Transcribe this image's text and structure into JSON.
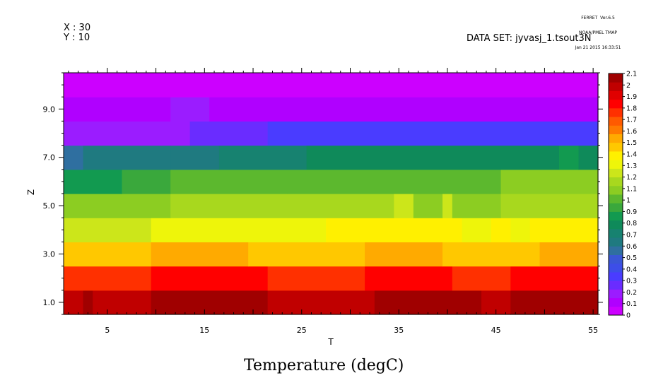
{
  "header": {
    "ferret_line1": "FERRET  Ver.6.5",
    "ferret_line2": "NOAA/PMEL TMAP",
    "ferret_line3": "Jan 21 2015 16:33:51",
    "x_label": "X : 30",
    "y_label": "Y : 10",
    "dataset": "DATA SET: jyvasj_1.tsout3N"
  },
  "chart_data": {
    "type": "heatmap",
    "title": "Temperature (degC)",
    "xlabel": "T",
    "ylabel": "Z",
    "xlim": [
      0.5,
      55.5
    ],
    "ylim": [
      0.5,
      10.5
    ],
    "x_ticks": [
      5,
      15,
      25,
      35,
      45,
      55
    ],
    "x_tick_labels": [
      "5",
      "15",
      "25",
      "35",
      "45",
      "55"
    ],
    "y_ticks": [
      1,
      3,
      5,
      7,
      9
    ],
    "y_tick_labels": [
      "1.0",
      "3.0",
      "5.0",
      "7.0",
      "9.0"
    ],
    "colorbar": {
      "levels": [
        0,
        0.1,
        0.2,
        0.3,
        0.4,
        0.5,
        0.6,
        0.7,
        0.8,
        0.9,
        1,
        1.1,
        1.2,
        1.3,
        1.4,
        1.5,
        1.6,
        1.7,
        1.8,
        1.9,
        2,
        2.1
      ],
      "labels": [
        "0",
        "0.1",
        "0.2",
        "0.3",
        "0.4",
        "0.5",
        "0.6",
        "0.7",
        "0.8",
        "0.9",
        "1",
        "1.1",
        "1.2",
        "1.3",
        "1.4",
        "1.5",
        "1.6",
        "1.7",
        "1.8",
        "1.9",
        "2",
        "2.1"
      ],
      "colors": [
        "#cc00ff",
        "#b000ff",
        "#9b1cff",
        "#6a2cff",
        "#4a3cff",
        "#3d4ee8",
        "#3a56d6",
        "#2f6fa0",
        "#1f7a80",
        "#178270",
        "#0f8a5a",
        "#129a50",
        "#3aa83c",
        "#5cb82e",
        "#8ccd22",
        "#a8d81e",
        "#cce61a",
        "#eef50a",
        "#fff000",
        "#ffc800",
        "#ffaa00",
        "#ff7a00",
        "#ff5a00",
        "#ff3000",
        "#ff0000",
        "#e00000",
        "#c00000",
        "#a00000"
      ]
    },
    "rows": [
      {
        "z": 1,
        "segments": [
          [
            0.5,
            2.5,
            2.0
          ],
          [
            2.5,
            3.5,
            2.05
          ],
          [
            3.5,
            9.5,
            2.0
          ],
          [
            9.5,
            21.5,
            2.05
          ],
          [
            21.5,
            32.5,
            2.0
          ],
          [
            32.5,
            43.5,
            2.05
          ],
          [
            43.5,
            46.5,
            2.0
          ],
          [
            46.5,
            55.5,
            2.05
          ]
        ]
      },
      {
        "z": 2,
        "segments": [
          [
            0.5,
            9.5,
            1.75
          ],
          [
            9.5,
            21.5,
            1.85
          ],
          [
            21.5,
            31.5,
            1.75
          ],
          [
            31.5,
            40.5,
            1.85
          ],
          [
            40.5,
            46.5,
            1.75
          ],
          [
            46.5,
            55.5,
            1.85
          ]
        ]
      },
      {
        "z": 3,
        "segments": [
          [
            0.5,
            9.5,
            1.45
          ],
          [
            9.5,
            19.5,
            1.55
          ],
          [
            19.5,
            31.5,
            1.45
          ],
          [
            31.5,
            39.5,
            1.55
          ],
          [
            39.5,
            49.5,
            1.45
          ],
          [
            49.5,
            55.5,
            1.55
          ]
        ]
      },
      {
        "z": 4,
        "segments": [
          [
            0.5,
            9.5,
            1.25
          ],
          [
            9.5,
            27.5,
            1.3
          ],
          [
            27.5,
            41.5,
            1.35
          ],
          [
            41.5,
            44.5,
            1.3
          ],
          [
            44.5,
            46.5,
            1.35
          ],
          [
            46.5,
            48.5,
            1.3
          ],
          [
            48.5,
            55.5,
            1.35
          ]
        ]
      },
      {
        "z": 5,
        "segments": [
          [
            0.5,
            2.5,
            1.05
          ],
          [
            2.5,
            11.5,
            1.1
          ],
          [
            11.5,
            34.5,
            1.15
          ],
          [
            34.5,
            36.5,
            1.2
          ],
          [
            36.5,
            39.5,
            1.1
          ],
          [
            39.5,
            40.5,
            1.2
          ],
          [
            40.5,
            45.5,
            1.1
          ],
          [
            45.5,
            55.5,
            1.15
          ]
        ]
      },
      {
        "z": 6,
        "segments": [
          [
            0.5,
            6.5,
            0.85
          ],
          [
            6.5,
            11.5,
            0.95
          ],
          [
            11.5,
            23.5,
            1.0
          ],
          [
            23.5,
            45.5,
            1.0
          ],
          [
            45.5,
            55.5,
            1.05
          ]
        ]
      },
      {
        "z": 7,
        "segments": [
          [
            0.5,
            2.5,
            0.55
          ],
          [
            2.5,
            11.5,
            0.6
          ],
          [
            11.5,
            16.5,
            0.65
          ],
          [
            16.5,
            25.5,
            0.7
          ],
          [
            25.5,
            51.5,
            0.75
          ],
          [
            51.5,
            53.5,
            0.85
          ],
          [
            53.5,
            55.5,
            0.75
          ]
        ]
      },
      {
        "z": 8,
        "segments": [
          [
            0.5,
            13.5,
            0.2
          ],
          [
            13.5,
            21.5,
            0.25
          ],
          [
            21.5,
            55.5,
            0.3
          ]
        ]
      },
      {
        "z": 9,
        "segments": [
          [
            0.5,
            11.5,
            0.1
          ],
          [
            11.5,
            15.5,
            0.15
          ],
          [
            15.5,
            55.5,
            0.1
          ]
        ]
      },
      {
        "z": 10,
        "segments": [
          [
            0.5,
            55.5,
            0.05
          ]
        ]
      }
    ]
  }
}
